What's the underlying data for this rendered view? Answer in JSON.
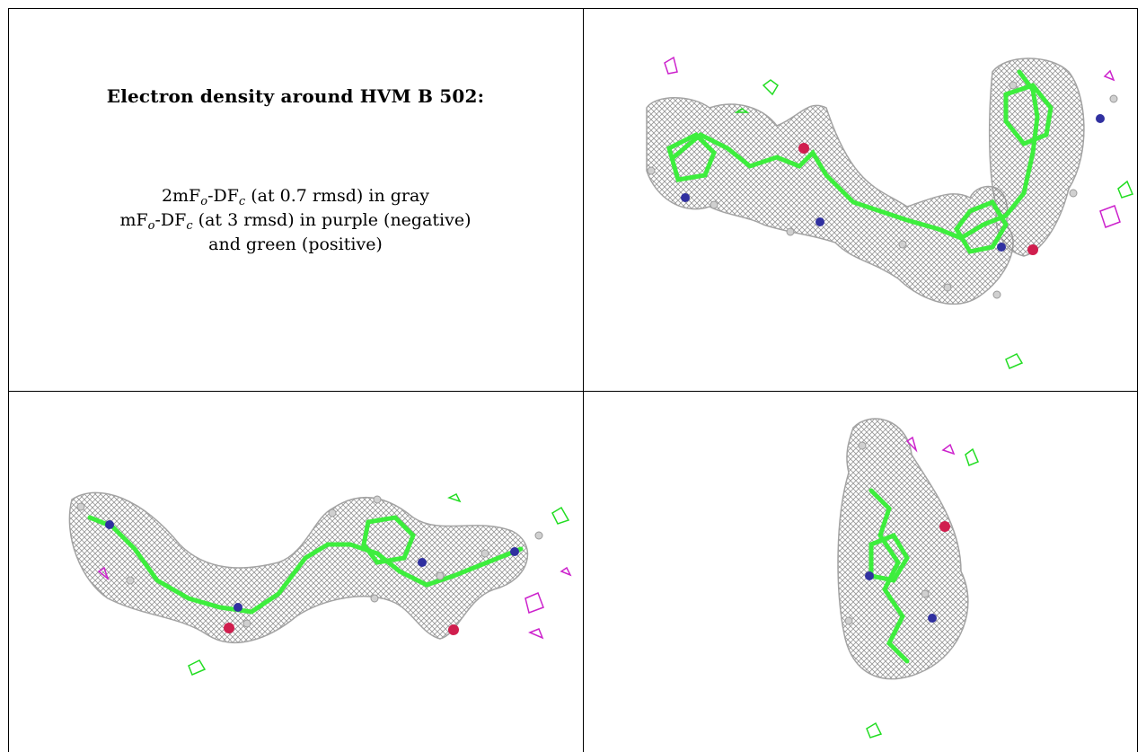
{
  "caption": {
    "title": "Electron density around HVM B 502:",
    "line1": {
      "a": "2mF",
      "b": "o",
      "c": "-DF",
      "d": "c",
      "e": " (at 0.7 rmsd) in gray"
    },
    "line2": {
      "a": "mF",
      "b": "o",
      "c": "-DF",
      "d": "c",
      "e": " (at 3 rmsd) in purple (negative)"
    },
    "line3": "and green (positive)"
  },
  "colors": {
    "density_2fofc": "#8a8a8a",
    "difference_negative": "#cc22cc",
    "difference_positive": "#22dd22",
    "nitrogen": "#3030a0",
    "oxygen": "#d01e4e",
    "carbon": "#3dee3d"
  },
  "panels": [
    {
      "name": "view-top-right"
    },
    {
      "name": "view-bottom-left"
    },
    {
      "name": "view-bottom-right"
    }
  ]
}
